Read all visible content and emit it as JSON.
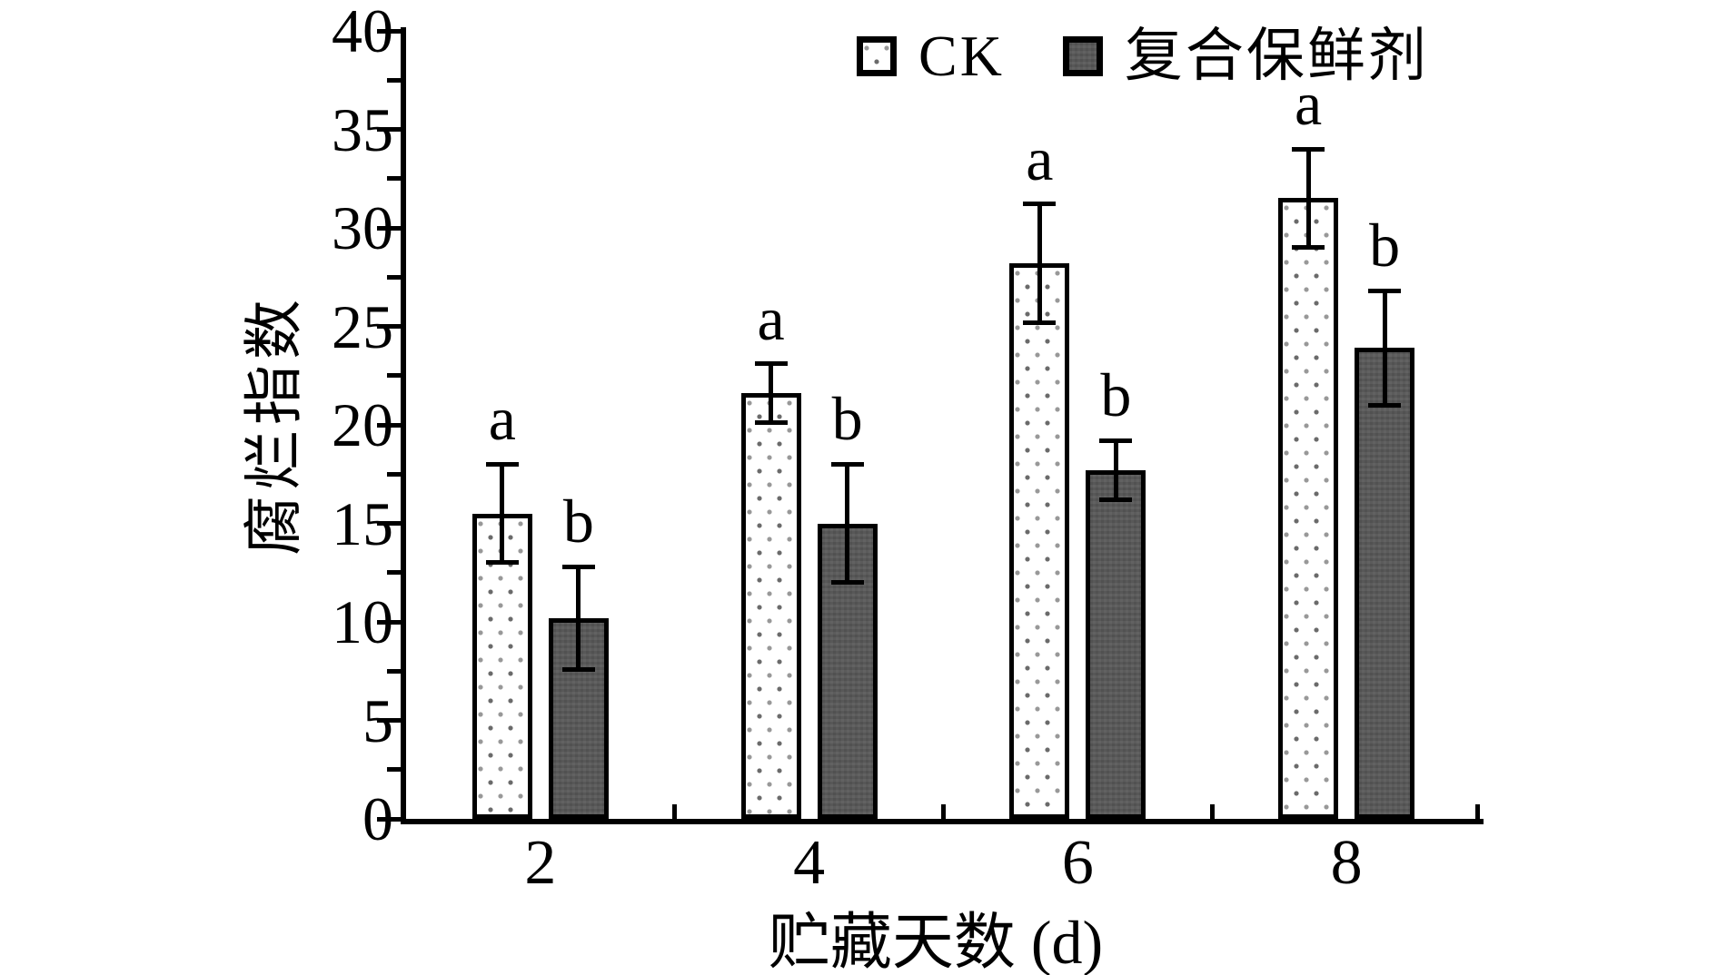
{
  "chart_data": {
    "type": "bar",
    "title": "",
    "categories": [
      "2",
      "4",
      "6",
      "8"
    ],
    "series": [
      {
        "name": "CK",
        "style": "dotted-white",
        "values": [
          15.5,
          21.6,
          28.2,
          31.5
        ],
        "errors": [
          2.5,
          1.5,
          3.0,
          2.5
        ],
        "sig_letters": [
          "a",
          "a",
          "a",
          "a"
        ]
      },
      {
        "name": "复合保鲜剂",
        "style": "solid-gray",
        "values": [
          10.2,
          15.0,
          17.7,
          23.9
        ],
        "errors": [
          2.6,
          3.0,
          1.5,
          2.9
        ],
        "sig_letters": [
          "b",
          "b",
          "b",
          "b"
        ]
      }
    ],
    "xlabel": "贮藏天数 (d)",
    "ylabel": "腐烂指数",
    "ylim": [
      0,
      40
    ],
    "y_major_ticks": [
      0,
      5,
      10,
      15,
      20,
      25,
      30,
      35,
      40
    ],
    "y_minor_step": 2.5,
    "x_tick_positions_between_groups": true,
    "legend_position": "top-center",
    "grid": false,
    "error_bars": true,
    "colors": {
      "bar_border": "#000000",
      "dark_bar_fill": "#585858",
      "dot_color": "#6a6a6a",
      "axis_color": "#000000",
      "background": "#ffffff"
    }
  }
}
